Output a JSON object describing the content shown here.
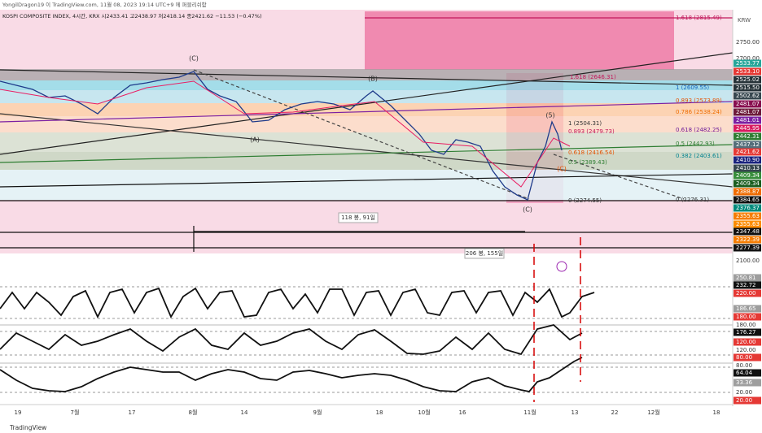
{
  "header": {
    "publisher": "YongilDragon19 이 TradingView.com, 11월 08, 2023 19:14 UTC+9 에 퍼블리쉬함",
    "symbol_line": "KOSPI COMPOSITE INDEX, 4시간, KRX  시2433.41  고2438.97  저2418.14  종2421.62  −11.53 (−0.47%)"
  },
  "currency": "KRW",
  "price_axis": [
    {
      "label": "2750.00"
    },
    {
      "label": "2700.00"
    },
    {
      "label": "2533.77",
      "color": "#26a69a"
    },
    {
      "label": "2533.10",
      "color": "#e53935"
    },
    {
      "label": "2525.02",
      "color": "#263238"
    },
    {
      "label": "2515.50",
      "color": "#263238"
    },
    {
      "label": "2502.62",
      "color": "#37474f"
    },
    {
      "label": "2481.07",
      "color": "#880e4f"
    },
    {
      "label": "2481.07",
      "color": "#6d1b3b"
    },
    {
      "label": "2481.01",
      "color": "#7b1fa2"
    },
    {
      "label": "2445.95",
      "color": "#d81b60"
    },
    {
      "label": "2442.31",
      "color": "#2e7d32"
    },
    {
      "label": "2437.12",
      "color": "#546e7a"
    },
    {
      "label": "2421.62",
      "color": "#e53935"
    },
    {
      "label": "2410.90",
      "color": "#1a237e"
    },
    {
      "label": "2410.13",
      "color": "#37474f"
    },
    {
      "label": "2409.34",
      "color": "#388e3c"
    },
    {
      "label": "2409.34",
      "color": "#1b5e20"
    },
    {
      "label": "2388.87",
      "color": "#ef6c00"
    },
    {
      "label": "2384.65",
      "color": "#111111"
    },
    {
      "label": "2376.37",
      "color": "#00897b"
    },
    {
      "label": "2355.63",
      "color": "#f57c00"
    },
    {
      "label": "2355.63",
      "color": "#fb8c00"
    },
    {
      "label": "2347.48",
      "color": "#111111"
    },
    {
      "label": "2322.39",
      "color": "#f57c00"
    },
    {
      "label": "2277.39",
      "color": "#111111"
    },
    {
      "label": "2100.00"
    }
  ],
  "osc_axis": [
    {
      "label": "250.81",
      "color": "#9e9e9e"
    },
    {
      "label": "232.72",
      "color": "#111111"
    },
    {
      "label": "220.00",
      "color": "#e53935"
    },
    {
      "label": "186.65",
      "color": "#9e9e9e"
    },
    {
      "label": "180.00",
      "color": "#e53935"
    },
    {
      "label": "180.00"
    },
    {
      "label": "176.27",
      "color": "#111111"
    },
    {
      "label": "120.00",
      "color": "#e53935"
    },
    {
      "label": "120.00"
    },
    {
      "label": "80.00",
      "color": "#e53935"
    },
    {
      "label": "80.00"
    },
    {
      "label": "64.04",
      "color": "#111111"
    },
    {
      "label": "33.36",
      "color": "#9e9e9e"
    },
    {
      "label": "20.00"
    },
    {
      "label": "20.00",
      "color": "#e53935"
    }
  ],
  "fib_labels": [
    "1.618 (2815.49)",
    "1.618 (2646.31)",
    "1 (2609.55)",
    "0.893 (2573.89)",
    "0.786 (2538.24)",
    "0.618 (2482.25)",
    "0.5 (2442.93)",
    "0.382 (2403.61)",
    "0 (2276.31)",
    "1 (2504.31)",
    "0.893 (2479.73)",
    "0.618 (2416.54)",
    "0.5 (2389.43)",
    "0 (2274.55)"
  ],
  "wave_labels": [
    "(C)",
    "(B)",
    "(A)",
    "(C)",
    "(5)",
    "(C)"
  ],
  "range_labels": [
    "118 봉, 91일",
    "206 봉, 155일"
  ],
  "time_axis": [
    "19",
    "7월",
    "17",
    "8월",
    "14",
    "9월",
    "18",
    "10월",
    "16",
    "11월",
    "13",
    "22",
    "12월",
    "18"
  ],
  "footer": "TradingView"
}
